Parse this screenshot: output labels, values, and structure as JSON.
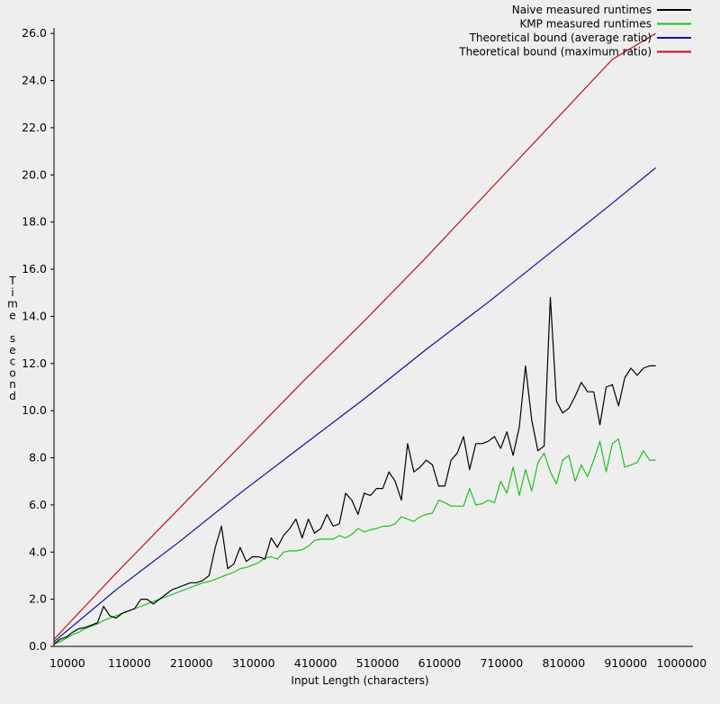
{
  "chart_data": {
    "type": "line",
    "title": "",
    "xlabel": "Input Length (characters)",
    "ylabel": "Time second",
    "xlim": [
      10000,
      1000000
    ],
    "ylim": [
      0,
      26
    ],
    "x_ticks": [
      10000,
      110000,
      210000,
      310000,
      410000,
      510000,
      610000,
      710000,
      810000,
      910000,
      1000000
    ],
    "y_ticks": [
      0,
      2,
      4,
      6,
      8,
      10,
      12,
      14,
      16,
      18,
      20,
      22,
      24,
      26
    ],
    "x_tick_labels": [
      "10000",
      "110000",
      "210000",
      "310000",
      "410000",
      "510000",
      "610000",
      "710000",
      "810000",
      "910000",
      "1000000"
    ],
    "y_tick_labels": [
      "0.0",
      "2.0",
      "4.0",
      "6.0",
      "8.0",
      "10.0",
      "12.0",
      "14.0",
      "16.0",
      "18.0",
      "20.0",
      "22.0",
      "24.0",
      "26.0"
    ],
    "grid": false,
    "legend_position": "top-right",
    "series": [
      {
        "name": "Naive measured runtimes",
        "color": "#000000",
        "points": [
          [
            0,
            0.1
          ],
          [
            10000,
            0.3
          ],
          [
            20000,
            0.4
          ],
          [
            30000,
            0.6
          ],
          [
            40000,
            0.75
          ],
          [
            50000,
            0.8
          ],
          [
            60000,
            0.9
          ],
          [
            70000,
            1.0
          ],
          [
            80000,
            1.7
          ],
          [
            90000,
            1.3
          ],
          [
            100000,
            1.2
          ],
          [
            110000,
            1.4
          ],
          [
            120000,
            1.5
          ],
          [
            130000,
            1.6
          ],
          [
            140000,
            2.0
          ],
          [
            150000,
            2.0
          ],
          [
            160000,
            1.8
          ],
          [
            170000,
            2.0
          ],
          [
            180000,
            2.2
          ],
          [
            190000,
            2.4
          ],
          [
            200000,
            2.5
          ],
          [
            210000,
            2.6
          ],
          [
            220000,
            2.7
          ],
          [
            230000,
            2.7
          ],
          [
            240000,
            2.8
          ],
          [
            250000,
            3.0
          ],
          [
            260000,
            4.2
          ],
          [
            270000,
            5.1
          ],
          [
            280000,
            3.3
          ],
          [
            290000,
            3.5
          ],
          [
            300000,
            4.2
          ],
          [
            310000,
            3.6
          ],
          [
            320000,
            3.8
          ],
          [
            330000,
            3.8
          ],
          [
            340000,
            3.7
          ],
          [
            350000,
            4.6
          ],
          [
            360000,
            4.2
          ],
          [
            370000,
            4.7
          ],
          [
            380000,
            5.0
          ],
          [
            390000,
            5.4
          ],
          [
            400000,
            4.6
          ],
          [
            410000,
            5.4
          ],
          [
            420000,
            4.8
          ],
          [
            430000,
            5.0
          ],
          [
            440000,
            5.6
          ],
          [
            450000,
            5.1
          ],
          [
            460000,
            5.2
          ],
          [
            470000,
            6.5
          ],
          [
            480000,
            6.2
          ],
          [
            490000,
            5.6
          ],
          [
            500000,
            6.5
          ],
          [
            510000,
            6.4
          ],
          [
            520000,
            6.7
          ],
          [
            530000,
            6.7
          ],
          [
            540000,
            7.4
          ],
          [
            550000,
            7.0
          ],
          [
            560000,
            6.2
          ],
          [
            570000,
            8.6
          ],
          [
            580000,
            7.4
          ],
          [
            590000,
            7.6
          ],
          [
            600000,
            7.9
          ],
          [
            610000,
            7.7
          ],
          [
            620000,
            6.8
          ],
          [
            630000,
            6.8
          ],
          [
            640000,
            7.9
          ],
          [
            650000,
            8.2
          ],
          [
            660000,
            8.9
          ],
          [
            670000,
            7.5
          ],
          [
            680000,
            8.6
          ],
          [
            690000,
            8.6
          ],
          [
            700000,
            8.7
          ],
          [
            710000,
            8.9
          ],
          [
            720000,
            8.4
          ],
          [
            730000,
            9.1
          ],
          [
            740000,
            8.1
          ],
          [
            750000,
            9.3
          ],
          [
            760000,
            11.9
          ],
          [
            770000,
            9.6
          ],
          [
            780000,
            8.3
          ],
          [
            790000,
            8.5
          ],
          [
            800000,
            14.8
          ],
          [
            810000,
            10.4
          ],
          [
            820000,
            9.9
          ],
          [
            830000,
            10.1
          ],
          [
            840000,
            10.6
          ],
          [
            850000,
            11.2
          ],
          [
            860000,
            10.8
          ],
          [
            870000,
            10.8
          ],
          [
            880000,
            9.4
          ],
          [
            890000,
            11.0
          ],
          [
            900000,
            11.1
          ],
          [
            910000,
            10.2
          ],
          [
            920000,
            11.4
          ],
          [
            930000,
            11.8
          ],
          [
            940000,
            11.5
          ],
          [
            950000,
            11.8
          ],
          [
            960000,
            11.9
          ],
          [
            970000,
            11.9
          ]
        ]
      },
      {
        "name": "KMP measured runtimes",
        "color": "#20c020",
        "points": [
          [
            0,
            0.1
          ],
          [
            10000,
            0.2
          ],
          [
            20000,
            0.35
          ],
          [
            30000,
            0.5
          ],
          [
            40000,
            0.6
          ],
          [
            50000,
            0.75
          ],
          [
            60000,
            0.85
          ],
          [
            70000,
            0.95
          ],
          [
            80000,
            1.1
          ],
          [
            90000,
            1.2
          ],
          [
            100000,
            1.3
          ],
          [
            110000,
            1.4
          ],
          [
            120000,
            1.5
          ],
          [
            130000,
            1.6
          ],
          [
            140000,
            1.7
          ],
          [
            150000,
            1.8
          ],
          [
            160000,
            1.9
          ],
          [
            170000,
            2.0
          ],
          [
            180000,
            2.1
          ],
          [
            190000,
            2.2
          ],
          [
            200000,
            2.3
          ],
          [
            210000,
            2.4
          ],
          [
            220000,
            2.5
          ],
          [
            230000,
            2.6
          ],
          [
            240000,
            2.7
          ],
          [
            250000,
            2.75
          ],
          [
            260000,
            2.85
          ],
          [
            270000,
            2.95
          ],
          [
            280000,
            3.05
          ],
          [
            290000,
            3.15
          ],
          [
            300000,
            3.3
          ],
          [
            310000,
            3.35
          ],
          [
            320000,
            3.45
          ],
          [
            330000,
            3.55
          ],
          [
            340000,
            3.75
          ],
          [
            350000,
            3.8
          ],
          [
            360000,
            3.7
          ],
          [
            370000,
            4.0
          ],
          [
            380000,
            4.05
          ],
          [
            390000,
            4.05
          ],
          [
            400000,
            4.1
          ],
          [
            410000,
            4.25
          ],
          [
            420000,
            4.5
          ],
          [
            430000,
            4.55
          ],
          [
            440000,
            4.55
          ],
          [
            450000,
            4.55
          ],
          [
            460000,
            4.7
          ],
          [
            470000,
            4.6
          ],
          [
            480000,
            4.75
          ],
          [
            490000,
            5.0
          ],
          [
            500000,
            4.85
          ],
          [
            510000,
            4.95
          ],
          [
            520000,
            5.0
          ],
          [
            530000,
            5.1
          ],
          [
            540000,
            5.1
          ],
          [
            550000,
            5.2
          ],
          [
            560000,
            5.5
          ],
          [
            570000,
            5.4
          ],
          [
            580000,
            5.3
          ],
          [
            590000,
            5.5
          ],
          [
            600000,
            5.6
          ],
          [
            610000,
            5.65
          ],
          [
            620000,
            6.2
          ],
          [
            630000,
            6.1
          ],
          [
            640000,
            5.95
          ],
          [
            650000,
            5.95
          ],
          [
            660000,
            5.95
          ],
          [
            670000,
            6.7
          ],
          [
            680000,
            6.0
          ],
          [
            690000,
            6.05
          ],
          [
            700000,
            6.2
          ],
          [
            710000,
            6.1
          ],
          [
            720000,
            7.0
          ],
          [
            730000,
            6.5
          ],
          [
            740000,
            7.6
          ],
          [
            750000,
            6.4
          ],
          [
            760000,
            7.5
          ],
          [
            770000,
            6.6
          ],
          [
            780000,
            7.8
          ],
          [
            790000,
            8.2
          ],
          [
            800000,
            7.4
          ],
          [
            810000,
            6.9
          ],
          [
            820000,
            7.9
          ],
          [
            830000,
            8.1
          ],
          [
            840000,
            7.0
          ],
          [
            850000,
            7.7
          ],
          [
            860000,
            7.2
          ],
          [
            870000,
            7.9
          ],
          [
            880000,
            8.7
          ],
          [
            890000,
            7.4
          ],
          [
            900000,
            8.6
          ],
          [
            910000,
            8.8
          ],
          [
            920000,
            7.6
          ],
          [
            930000,
            7.7
          ],
          [
            940000,
            7.8
          ],
          [
            950000,
            8.3
          ],
          [
            960000,
            7.9
          ],
          [
            970000,
            7.9
          ]
        ]
      },
      {
        "name": "Theoretical bound (average ratio)",
        "color": "#1010a0",
        "points": [
          [
            0,
            0.2
          ],
          [
            100000,
            2.4
          ],
          [
            200000,
            4.4
          ],
          [
            300000,
            6.5
          ],
          [
            400000,
            8.5
          ],
          [
            500000,
            10.5
          ],
          [
            600000,
            12.6
          ],
          [
            700000,
            14.6
          ],
          [
            800000,
            16.7
          ],
          [
            900000,
            18.8
          ],
          [
            970000,
            20.3
          ]
        ]
      },
      {
        "name": "Theoretical bound (maximum ratio)",
        "color": "#c01010",
        "points": [
          [
            0,
            0.3
          ],
          [
            100000,
            3.1
          ],
          [
            200000,
            5.8
          ],
          [
            300000,
            8.5
          ],
          [
            400000,
            11.2
          ],
          [
            500000,
            13.8
          ],
          [
            600000,
            16.5
          ],
          [
            700000,
            19.3
          ],
          [
            800000,
            22.1
          ],
          [
            900000,
            24.9
          ],
          [
            970000,
            26.0
          ]
        ]
      }
    ]
  }
}
